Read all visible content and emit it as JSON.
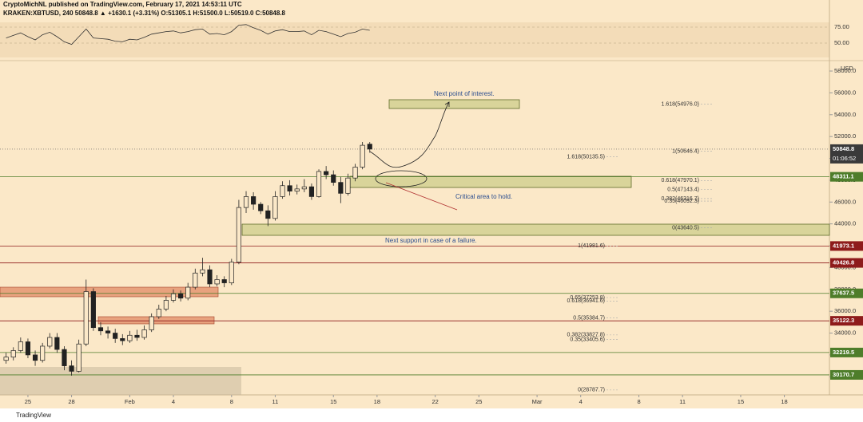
{
  "header": {
    "line1": "CryptoMichNL published on TradingView.com, February 17, 2021 14:53:11 UTC",
    "line2": "KRAKEN:XBTUSD, 240  50848.8  ▲ +1630.1 (+3.31%)  O:51305.1  H:51500.0  L:50519.0  C:50848.8"
  },
  "footer": "TradingView",
  "chart_data": [
    {
      "type": "candlestick",
      "currency": "USD",
      "xlim": [
        -1.92,
        55.1
      ],
      "xticks": [
        {
          "value": 0,
          "label": "25"
        },
        {
          "value": 3,
          "label": "28"
        },
        {
          "value": 7,
          "label": "Feb"
        },
        {
          "value": 10,
          "label": "4"
        },
        {
          "value": 14,
          "label": "8"
        },
        {
          "value": 17,
          "label": "11"
        },
        {
          "value": 21,
          "label": "15"
        },
        {
          "value": 24,
          "label": "18"
        },
        {
          "value": 28,
          "label": "22"
        },
        {
          "value": 31,
          "label": "25"
        },
        {
          "value": 35,
          "label": "Mar"
        },
        {
          "value": 38,
          "label": "4"
        },
        {
          "value": 42,
          "label": "8"
        },
        {
          "value": 45,
          "label": "11"
        },
        {
          "value": 49,
          "label": "15"
        },
        {
          "value": 52,
          "label": "18"
        }
      ],
      "ylim": [
        28340,
        58660
      ],
      "yticks": [
        {
          "value": 30000,
          "label": "30000.0"
        },
        {
          "value": 32000,
          "label": "32000.0"
        },
        {
          "value": 34000,
          "label": "34000.0"
        },
        {
          "value": 36000,
          "label": "36000.0"
        },
        {
          "value": 38000,
          "label": "38000.0"
        },
        {
          "value": 40000,
          "label": "40000.0"
        },
        {
          "value": 42000,
          "label": "42000.0"
        },
        {
          "value": 44000,
          "label": "44000.0"
        },
        {
          "value": 46000,
          "label": "46000.0"
        },
        {
          "value": 48000,
          "label": "48000.0"
        },
        {
          "value": 50000,
          "label": "50000.0"
        },
        {
          "value": 52000,
          "label": "52000.0"
        },
        {
          "value": 54000,
          "label": "54000.0"
        },
        {
          "value": 56000,
          "label": "56000.0"
        },
        {
          "value": 58000,
          "label": "58000.0"
        }
      ],
      "x": [
        -1.5,
        -1,
        -0.5,
        0,
        0.5,
        1,
        1.5,
        2,
        2.5,
        3,
        3.5,
        4,
        4.5,
        5,
        5.5,
        6,
        6.5,
        7,
        7.5,
        8,
        8.5,
        9,
        9.5,
        10,
        10.5,
        11,
        11.5,
        12,
        12.5,
        13,
        13.5,
        14,
        14.5,
        15,
        15.5,
        16,
        16.5,
        17,
        17.5,
        18,
        18.5,
        19,
        19.5,
        20,
        20.5,
        21,
        21.5,
        22,
        22.5,
        23,
        23.5
      ],
      "open": [
        31500,
        31800,
        32400,
        33200,
        32000,
        31500,
        32800,
        33600,
        32500,
        31000,
        30500,
        33000,
        37800,
        34500,
        34200,
        34000,
        33500,
        33300,
        33800,
        33600,
        34300,
        35500,
        36200,
        37000,
        37600,
        37200,
        38200,
        39500,
        39800,
        38500,
        38900,
        38600,
        40500,
        45500,
        46500,
        45800,
        45200,
        44500,
        46500,
        47500,
        47000,
        47200,
        47400,
        46500,
        48800,
        48500,
        47800,
        46800,
        48200,
        49200,
        51305.1
      ],
      "high": [
        32200,
        32700,
        33600,
        33500,
        32400,
        33100,
        34000,
        34000,
        32800,
        31500,
        33400,
        38900,
        38100,
        35000,
        34600,
        34400,
        33900,
        34200,
        34300,
        34700,
        35800,
        36600,
        37400,
        38000,
        37900,
        38600,
        39900,
        40900,
        40200,
        39300,
        39200,
        40800,
        46200,
        47000,
        46900,
        46000,
        45700,
        47000,
        47900,
        48000,
        47600,
        48100,
        47700,
        49000,
        49300,
        48900,
        48300,
        48600,
        49500,
        51500,
        51500
      ],
      "low": [
        31200,
        31500,
        32200,
        31700,
        31000,
        31300,
        32600,
        32200,
        30600,
        30100,
        30400,
        32800,
        34200,
        33800,
        33500,
        33100,
        32900,
        33100,
        33300,
        33400,
        34100,
        35300,
        36000,
        36800,
        36900,
        37000,
        38000,
        39200,
        38200,
        38300,
        38200,
        38400,
        40300,
        45000,
        45300,
        44900,
        43800,
        44300,
        46300,
        46600,
        46700,
        46900,
        46200,
        46400,
        48100,
        47500,
        45900,
        46600,
        47900,
        49000,
        50519
      ],
      "close": [
        31800,
        32400,
        33200,
        32000,
        31500,
        32800,
        33600,
        32500,
        31000,
        30500,
        33000,
        37800,
        34500,
        34200,
        34000,
        33500,
        33300,
        33800,
        33600,
        34300,
        35500,
        36200,
        37000,
        37600,
        37200,
        38200,
        39500,
        39800,
        38500,
        38900,
        38600,
        40500,
        45500,
        46500,
        45800,
        45200,
        44500,
        46500,
        47500,
        47000,
        47200,
        47400,
        46500,
        48800,
        48500,
        47800,
        46800,
        48200,
        49200,
        51200,
        50848.8
      ],
      "current_price": 50848.8,
      "countdown": "01:06:52",
      "levels": [
        {
          "value": 48311.1,
          "color": "#4e7d2a"
        },
        {
          "value": 41973.1,
          "color": "#8e1b1b"
        },
        {
          "value": 40426.8,
          "color": "#8e1b1b"
        },
        {
          "value": 37637.5,
          "color": "#4e7d2a"
        },
        {
          "value": 35122.3,
          "color": "#8e1b1b"
        },
        {
          "value": 32219.5,
          "color": "#4e7d2a"
        },
        {
          "value": 30170.7,
          "color": "#4e7d2a"
        }
      ],
      "fib_sets": [
        [
          {
            "label": "1.618(54976.0)",
            "price": 54976.0
          },
          {
            "label": "1(50646.4)",
            "price": 50646.4
          },
          {
            "label": "0.618(47970.1)",
            "price": 47970.1
          },
          {
            "label": "0.5(47143.4)",
            "price": 47143.4
          },
          {
            "label": "0.382(46316.7)",
            "price": 46316.7
          },
          {
            "label": "0.35(46092.3)",
            "price": 46092.3
          },
          {
            "label": "0(43640.5)",
            "price": 43640.5
          }
        ],
        [
          {
            "label": "1.618(50135.5)",
            "price": 50135.5
          },
          {
            "label": "1(41981.6)",
            "price": 41981.6
          },
          {
            "label": "0.65(37253.8)",
            "price": 37253.8
          },
          {
            "label": "0.618(36941.6)",
            "price": 36941.6
          },
          {
            "label": "0.5(35384.7)",
            "price": 35384.7
          },
          {
            "label": "0.382(33827.8)",
            "price": 33827.8
          },
          {
            "label": "0.35(33405.6)",
            "price": 33405.6
          },
          {
            "label": "0(28787.7)",
            "price": 28787.7
          }
        ]
      ],
      "annotations": [
        "Next point of interest.",
        "Critical area to hold.",
        "Next support in case of a failure."
      ]
    },
    {
      "type": "line",
      "name": "rsi",
      "color": "#333333",
      "ylim": [
        27.5,
        82.5
      ],
      "yticks": [
        {
          "value": 75,
          "label": "75.00"
        },
        {
          "value": 50,
          "label": "50.00"
        }
      ],
      "x": [
        -1.5,
        -1,
        -0.5,
        0,
        0.5,
        1,
        1.5,
        2,
        2.5,
        3,
        3.5,
        4,
        4.5,
        5,
        5.5,
        6,
        6.5,
        7,
        7.5,
        8,
        8.5,
        9,
        9.5,
        10,
        10.5,
        11,
        11.5,
        12,
        12.5,
        13,
        13.5,
        14,
        14.5,
        15,
        15.5,
        16,
        16.5,
        17,
        17.5,
        18,
        18.5,
        19,
        19.5,
        20,
        20.5,
        21,
        21.5,
        22,
        22.5,
        23,
        23.5
      ],
      "values": [
        58,
        62,
        66,
        60,
        55,
        63,
        67,
        60,
        52,
        48,
        60,
        72,
        58,
        57,
        56,
        53,
        52,
        56,
        55,
        59,
        64,
        66,
        68,
        69,
        66,
        68,
        71,
        72,
        64,
        65,
        63,
        68,
        78,
        79,
        74,
        70,
        64,
        69,
        71,
        68,
        68,
        69,
        63,
        70,
        68,
        64,
        60,
        65,
        67,
        72,
        70
      ]
    }
  ]
}
